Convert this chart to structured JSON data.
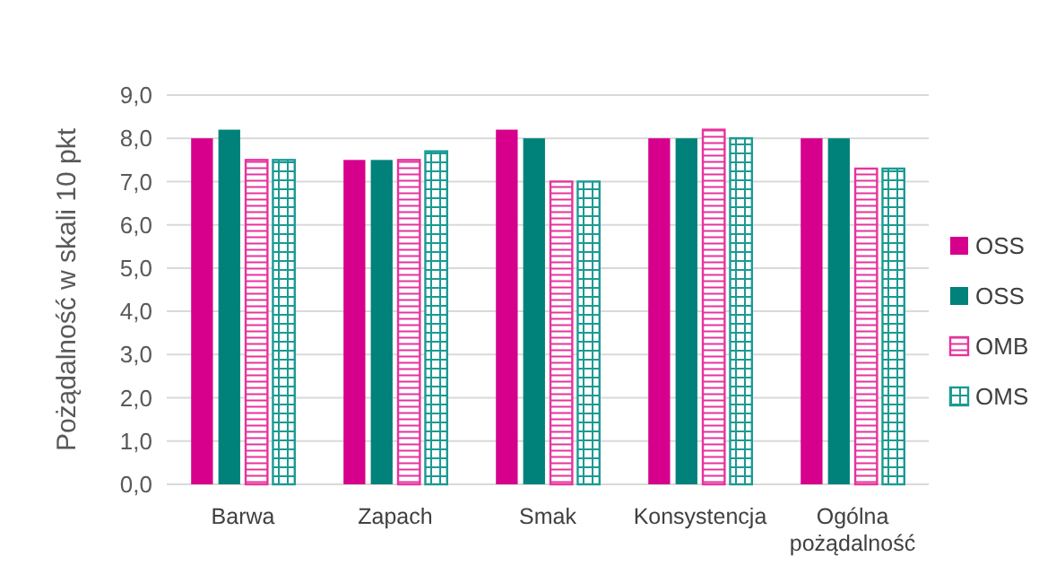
{
  "chart_data": {
    "type": "bar",
    "ylabel": "Pożądalność w skali 10 pkt",
    "categories": [
      "Barwa",
      "Zapach",
      "Smak",
      "Konsystencja",
      "Ogólna pożądalność"
    ],
    "series": [
      {
        "name": "OSS",
        "color": "#d6008c",
        "values": [
          8.0,
          7.5,
          8.2,
          8.0,
          8.0
        ]
      },
      {
        "name": "OSS",
        "color": "#00827a",
        "values": [
          8.2,
          7.5,
          8.0,
          8.0,
          8.0
        ]
      },
      {
        "name": "OMB",
        "color": "#e6339e",
        "values": [
          7.5,
          7.5,
          7.0,
          8.2,
          7.3
        ]
      },
      {
        "name": "OMS",
        "color": "#1a9a93",
        "values": [
          7.5,
          7.7,
          7.0,
          8.0,
          7.3
        ]
      }
    ],
    "ylim": [
      0,
      9
    ],
    "yticks": [
      {
        "value": 0,
        "label": "0,0"
      },
      {
        "value": 1,
        "label": "1,0"
      },
      {
        "value": 2,
        "label": "2,0"
      },
      {
        "value": 3,
        "label": "3,0"
      },
      {
        "value": 4,
        "label": "4,0"
      },
      {
        "value": 5,
        "label": "5,0"
      },
      {
        "value": 6,
        "label": "6,0"
      },
      {
        "value": 7,
        "label": "7,0"
      },
      {
        "value": 8,
        "label": "8,0"
      },
      {
        "value": 9,
        "label": "9,0"
      }
    ],
    "grid": "y",
    "legend": "right"
  }
}
